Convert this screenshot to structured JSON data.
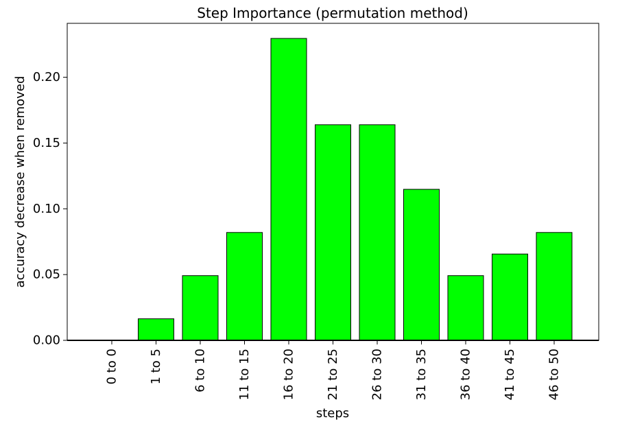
{
  "chart_data": {
    "type": "bar",
    "title": "Step Importance (permutation method)",
    "xlabel": "steps",
    "ylabel": "accuracy decrease when removed",
    "categories": [
      "0 to 0",
      "1 to 5",
      "6 to 10",
      "11 to 15",
      "16 to 20",
      "21 to 25",
      "26 to 30",
      "31 to 35",
      "36 to 40",
      "41 to 45",
      "46 to 50"
    ],
    "values": [
      0.0,
      0.0164,
      0.0492,
      0.082,
      0.2295,
      0.1639,
      0.1639,
      0.1148,
      0.0492,
      0.0656,
      0.082
    ],
    "ylim": [
      0,
      0.241
    ],
    "yticks": [
      0.0,
      0.05,
      0.1,
      0.15,
      0.2
    ],
    "ytick_labels": [
      "0.00",
      "0.05",
      "0.10",
      "0.15",
      "0.20"
    ],
    "grid": false,
    "bar_color": "#00ff00",
    "edge_color": "#000000"
  }
}
